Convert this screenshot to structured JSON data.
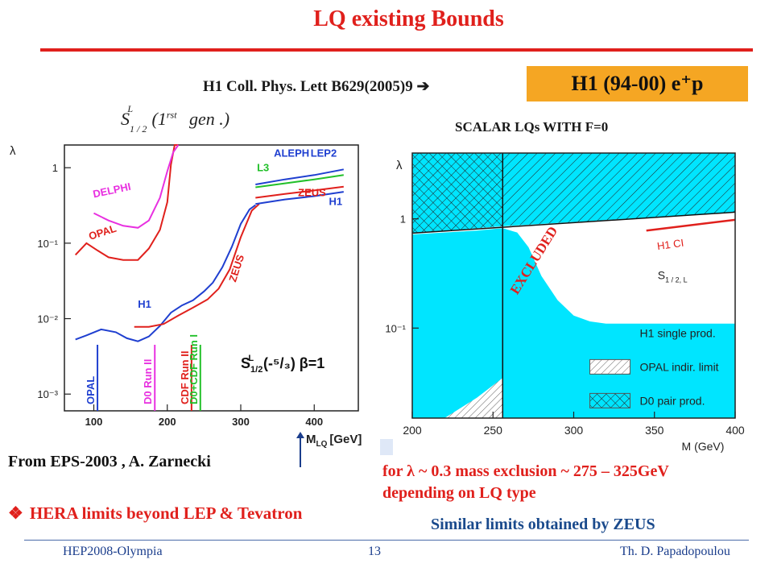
{
  "slide": {
    "title": "LQ existing Bounds",
    "reference": "H1 Coll. Phys. Lett B629(2005)9 ➔",
    "h1_box": "H1 (94-00) e⁺p",
    "formula": "S",
    "formula_sup": "L",
    "formula_sub": "1 / 2",
    "formula_rest": "(1",
    "formula_rst": "rst",
    "formula_gen": "gen   .)",
    "scalar_label": "SCALAR  LQs  WITH F=0",
    "from_text": "From  EPS-2003  , A. Zarnecki",
    "exclusion_line1": "for λ ~ 0.3 mass exclusion ~ 275 – 325GeV",
    "exclusion_line2": "depending on LQ type",
    "bullet": "HERA limits beyond LEP & Tevatron",
    "similar": "Similar limits obtained by ZEUS",
    "footer_left": "HEP2008-Olympia",
    "footer_center": "13",
    "footer_right": "Th. D. Papadopoulou",
    "colors": {
      "title_red": "#e0201c",
      "box_orange": "#f5a623",
      "cyan": "#00e5ff",
      "blue_text": "#1a4a8c"
    }
  },
  "chart_data": [
    {
      "type": "line",
      "yscale": "log",
      "xlabel": "M",
      "xlabel_sub": "LQ",
      "xlabel_unit": "[GeV]",
      "ylabel": "λ",
      "xlim": [
        60,
        460
      ],
      "ylim": [
        0.0006,
        2
      ],
      "x_ticks": [
        "100",
        "200",
        "300",
        "400"
      ],
      "y_ticks": [
        "1",
        "10⁻¹",
        "10⁻²",
        "10⁻³"
      ],
      "y_tick_values": [
        1,
        0.1,
        0.01,
        0.001
      ],
      "annotation_main": "S",
      "annotation_sub": "1/2",
      "annotation_sup": "L",
      "annotation_rest": "(-⁵/₃)   β=1",
      "series": [
        {
          "name": "H1",
          "color": "#1f3fd0",
          "label_at": [
            160,
            0.014
          ],
          "x": [
            75,
            90,
            110,
            130,
            145,
            160,
            175,
            190,
            205,
            220,
            235,
            250,
            262,
            275,
            288,
            300,
            312,
            320
          ],
          "y": [
            0.0053,
            0.006,
            0.0072,
            0.0066,
            0.0055,
            0.005,
            0.0058,
            0.008,
            0.012,
            0.015,
            0.0175,
            0.023,
            0.03,
            0.048,
            0.09,
            0.18,
            0.28,
            0.32
          ]
        },
        {
          "name": "ZEUS",
          "color": "#e0201c",
          "label_at": [
            293,
            0.03
          ],
          "x": [
            155,
            175,
            195,
            215,
            235,
            255,
            270,
            285,
            300,
            315,
            325
          ],
          "y": [
            0.0078,
            0.0078,
            0.0085,
            0.011,
            0.014,
            0.018,
            0.025,
            0.045,
            0.12,
            0.27,
            0.33
          ]
        },
        {
          "name": "OPAL",
          "color": "#e0201c",
          "label_at": [
            95,
            0.11
          ],
          "x": [
            75,
            90,
            105,
            120,
            140,
            160,
            175,
            190,
            200,
            205,
            210,
            215
          ],
          "y": [
            0.07,
            0.1,
            0.08,
            0.065,
            0.06,
            0.06,
            0.085,
            0.15,
            0.35,
            1.1,
            2.0,
            2.0
          ]
        },
        {
          "name": "DELPHI",
          "color": "#e830e0",
          "label_at": [
            100,
            0.4
          ],
          "x": [
            100,
            120,
            140,
            160,
            175,
            190,
            200,
            208,
            215
          ],
          "y": [
            0.25,
            0.2,
            0.17,
            0.16,
            0.2,
            0.4,
            0.9,
            1.6,
            2.0
          ]
        },
        {
          "name": "ALEPH",
          "color": "#1f3fd0",
          "label_at": [
            345,
            1.4
          ],
          "x": [
            320,
            360,
            400,
            440
          ],
          "y": [
            0.6,
            0.7,
            0.8,
            0.95
          ]
        },
        {
          "name": "L3",
          "color": "#22c02a",
          "label_at": [
            322,
            0.9
          ],
          "x": [
            320,
            360,
            400,
            440
          ],
          "y": [
            0.55,
            0.62,
            0.7,
            0.8
          ]
        },
        {
          "name": "LEP2",
          "color": "#1f3fd0",
          "label_at": [
            395,
            1.4
          ]
        },
        {
          "name": "ZEUS (LEP region)",
          "color": "#e0201c",
          "x": [
            320,
            360,
            400,
            440
          ],
          "y": [
            0.4,
            0.45,
            0.5,
            0.56
          ]
        },
        {
          "name": "H1 (LEP region)",
          "color": "#1f3fd0",
          "x": [
            320,
            360,
            400,
            440
          ],
          "y": [
            0.33,
            0.38,
            0.42,
            0.48
          ]
        }
      ],
      "vertical_limits": [
        {
          "name": "OPAL",
          "x": 105,
          "color": "#1f3fd0"
        },
        {
          "name": "D0 Run II",
          "x": 183,
          "color": "#e830e0"
        },
        {
          "name": "CDF Run II",
          "x": 233,
          "color": "#e0201c"
        },
        {
          "name": "D0+CDF  Run I",
          "x": 245,
          "color": "#22c02a"
        }
      ]
    },
    {
      "type": "area",
      "yscale": "log",
      "xlabel": "M (GeV)",
      "ylabel": "λ",
      "xlim": [
        200,
        400
      ],
      "ylim": [
        0.015,
        4
      ],
      "x_ticks": [
        "200",
        "250",
        "300",
        "350",
        "400"
      ],
      "y_ticks": [
        "1",
        "10⁻¹"
      ],
      "y_tick_values": [
        1,
        0.1
      ],
      "excluded_label": "EXCLUDED",
      "s_label": "S",
      "s_sub": "1 / 2, L",
      "legend": [
        "H1 single prod.",
        "OPAL indir. limit",
        "D0 pair prod."
      ],
      "legend_position": "bottom-right",
      "h1_single_boundary": {
        "x": [
          200,
          240,
          256,
          265,
          272,
          280,
          290,
          300,
          310,
          320,
          340,
          360,
          380,
          400
        ],
        "y": [
          0.72,
          0.78,
          0.82,
          0.75,
          0.55,
          0.3,
          0.18,
          0.13,
          0.115,
          0.11,
          0.11,
          0.11,
          0.11,
          0.11
        ]
      },
      "top_limit": {
        "x": [
          200,
          400
        ],
        "y": [
          0.74,
          1.15
        ]
      },
      "opal_indir_limit": {
        "x": [
          200,
          220,
          240,
          256
        ],
        "y": [
          0.015,
          0.015,
          0.023,
          0.035
        ]
      },
      "d0_pair_mass": 256,
      "h1_ci": {
        "name": "H1 CI",
        "x": [
          345,
          400
        ],
        "y": [
          0.78,
          0.98
        ]
      }
    }
  ]
}
